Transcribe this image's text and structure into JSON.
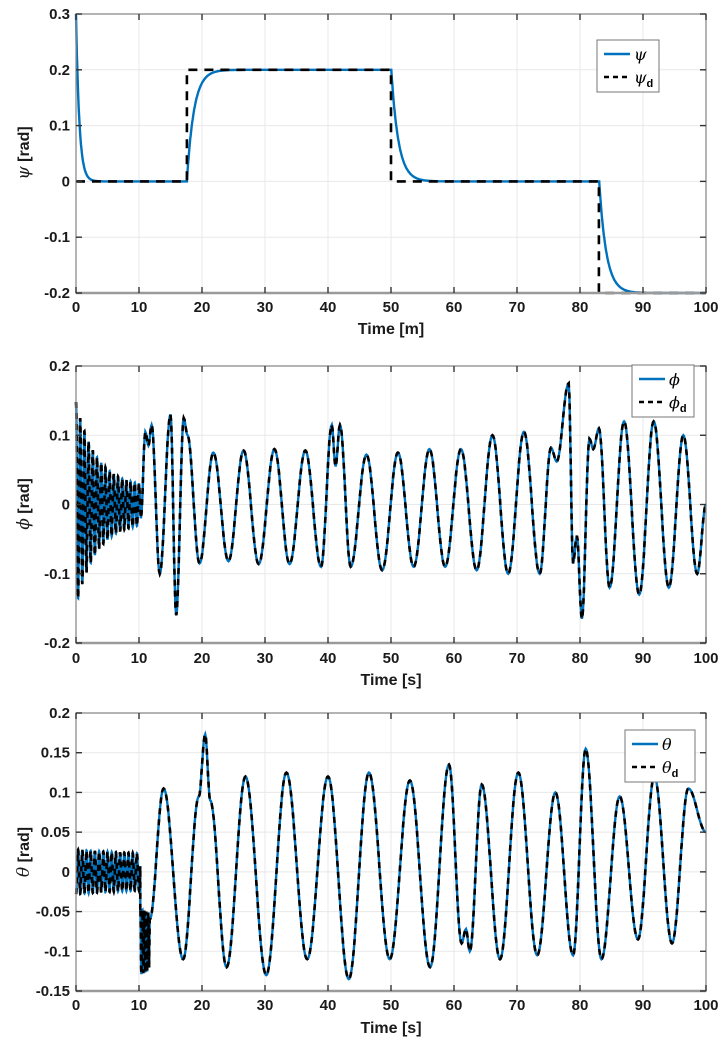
{
  "colors": {
    "line_actual": "#0072BD",
    "line_desired": "#000000",
    "axis_box": "#8c8c8c",
    "axis_bottom": "#9a9a9a",
    "grid": "#e8e8e8",
    "tick_label": "#1a1a1a",
    "legend_border": "#777777",
    "background": "#ffffff"
  },
  "chart_data": [
    {
      "type": "line",
      "xlabel": "Time [m]",
      "ylabel_greek": "ψ",
      "ylabel_unit": " [rad]",
      "xlim": [
        0,
        100
      ],
      "ylim": [
        -0.2,
        0.3
      ],
      "xticks": [
        0,
        10,
        20,
        30,
        40,
        50,
        60,
        70,
        80,
        90,
        100
      ],
      "yticks": [
        -0.2,
        -0.1,
        0,
        0.1,
        0.2,
        0.3
      ],
      "grid": true,
      "legend_position": "top-right",
      "legend": [
        {
          "label": "ψ",
          "sub": "",
          "line": "solid",
          "color": "#0072BD"
        },
        {
          "label": "ψ",
          "sub": "d",
          "line": "dashed",
          "color": "#000000"
        }
      ],
      "series": [
        {
          "name": "psi",
          "color": "#0072BD",
          "style": "solid",
          "gen": {
            "kind": "lag",
            "init": 0.3,
            "dt": 0.05,
            "taus": [
              {
                "until": 10,
                "tau": 0.55
              },
              {
                "until": 101,
                "tau": 1.15
              }
            ],
            "steps": [
              [
                0,
                0
              ],
              [
                17.6,
                0.2
              ],
              [
                50,
                0
              ],
              [
                83,
                -0.2
              ],
              [
                100,
                -0.2
              ]
            ]
          }
        },
        {
          "name": "psi_d",
          "color": "#000000",
          "style": "dashed",
          "gen": {
            "kind": "steps",
            "steps": [
              [
                0,
                0
              ],
              [
                17.6,
                0.2
              ],
              [
                50,
                0
              ],
              [
                83,
                -0.2
              ],
              [
                100,
                -0.2
              ]
            ]
          }
        }
      ]
    },
    {
      "type": "line",
      "xlabel": "Time [s]",
      "ylabel_greek": "ϕ",
      "ylabel_unit": " [rad]",
      "xlim": [
        0,
        100
      ],
      "ylim": [
        -0.2,
        0.2
      ],
      "xticks": [
        0,
        10,
        20,
        30,
        40,
        50,
        60,
        70,
        80,
        90,
        100
      ],
      "yticks": [
        -0.2,
        -0.1,
        0,
        0.1,
        0.2
      ],
      "grid": true,
      "legend_position": "top-right",
      "legend": [
        {
          "label": "ϕ",
          "sub": "",
          "line": "solid",
          "color": "#0072BD"
        },
        {
          "label": "ϕ",
          "sub": "d",
          "line": "dashed",
          "color": "#000000"
        }
      ],
      "series": [
        {
          "name": "phi",
          "color": "#0072BD",
          "style": "solid",
          "gen": {
            "kind": "segments",
            "segments": [
              {
                "kind": "osc",
                "t0": 0,
                "t1": 10.2,
                "freq": 1.5,
                "phase": 1.5708,
                "amp0": 0.148,
                "amp1": 0.025,
                "tau": 3.2,
                "offset": 0
              },
              {
                "kind": "extrema",
                "points": [
                  [
                    10.3,
                    -0.02
                  ],
                  [
                    11.0,
                    0.105
                  ],
                  [
                    11.5,
                    0.085
                  ],
                  [
                    12.0,
                    0.115
                  ],
                  [
                    13.3,
                    -0.1
                  ],
                  [
                    15.0,
                    0.13
                  ],
                  [
                    15.9,
                    -0.16
                  ],
                  [
                    17.1,
                    0.125
                  ],
                  [
                    17.7,
                    0.1
                  ],
                  [
                    19.6,
                    -0.085
                  ],
                  [
                    21.8,
                    0.075
                  ],
                  [
                    24.2,
                    -0.082
                  ],
                  [
                    26.6,
                    0.078
                  ],
                  [
                    29.0,
                    -0.086
                  ],
                  [
                    31.5,
                    0.08
                  ],
                  [
                    33.9,
                    -0.086
                  ],
                  [
                    36.4,
                    0.078
                  ],
                  [
                    38.9,
                    -0.09
                  ],
                  [
                    40.6,
                    0.115
                  ],
                  [
                    41.2,
                    0.055
                  ],
                  [
                    41.9,
                    0.115
                  ],
                  [
                    43.6,
                    -0.09
                  ],
                  [
                    46.1,
                    0.072
                  ],
                  [
                    48.6,
                    -0.095
                  ],
                  [
                    51.1,
                    0.075
                  ],
                  [
                    53.6,
                    -0.09
                  ],
                  [
                    56.1,
                    0.08
                  ],
                  [
                    58.6,
                    -0.09
                  ],
                  [
                    61.1,
                    0.08
                  ],
                  [
                    63.6,
                    -0.095
                  ],
                  [
                    66.1,
                    0.1
                  ],
                  [
                    68.6,
                    -0.1
                  ],
                  [
                    71.1,
                    0.105
                  ],
                  [
                    73.6,
                    -0.1
                  ],
                  [
                    75.4,
                    0.082
                  ],
                  [
                    76.3,
                    0.062
                  ],
                  [
                    78.2,
                    0.175
                  ],
                  [
                    78.9,
                    -0.085
                  ],
                  [
                    79.5,
                    -0.045
                  ],
                  [
                    80.3,
                    -0.165
                  ],
                  [
                    81.5,
                    0.095
                  ],
                  [
                    82.1,
                    0.08
                  ],
                  [
                    83.0,
                    0.11
                  ],
                  [
                    84.7,
                    -0.12
                  ],
                  [
                    87.0,
                    0.12
                  ],
                  [
                    89.4,
                    -0.13
                  ],
                  [
                    91.7,
                    0.12
                  ],
                  [
                    94.1,
                    -0.12
                  ],
                  [
                    96.4,
                    0.1
                  ],
                  [
                    98.6,
                    -0.1
                  ],
                  [
                    100.0,
                    0.0
                  ]
                ]
              }
            ]
          }
        },
        {
          "name": "phi_d",
          "color": "#000000",
          "style": "dashed",
          "gen": {
            "kind": "ref",
            "ref": 0
          }
        }
      ]
    },
    {
      "type": "line",
      "xlabel": "Time [s]",
      "ylabel_greek": "θ",
      "ylabel_unit": " [rad]",
      "xlim": [
        0,
        100
      ],
      "ylim": [
        -0.15,
        0.2
      ],
      "xticks": [
        0,
        10,
        20,
        30,
        40,
        50,
        60,
        70,
        80,
        90,
        100
      ],
      "yticks": [
        -0.15,
        -0.1,
        -0.05,
        0,
        0.05,
        0.1,
        0.15,
        0.2
      ],
      "grid": true,
      "legend_position": "top-right",
      "legend": [
        {
          "label": "θ",
          "sub": "",
          "line": "solid",
          "color": "#0072BD"
        },
        {
          "label": "θ",
          "sub": "d",
          "line": "dashed",
          "color": "#000000"
        }
      ],
      "series": [
        {
          "name": "theta",
          "color": "#0072BD",
          "style": "solid",
          "gen": {
            "kind": "segments",
            "segments": [
              {
                "kind": "osc",
                "t0": 0,
                "t1": 10.2,
                "freq": 1.5,
                "phase": -1.5708,
                "amp0": 0.028,
                "amp1": 0.02,
                "tau": 12,
                "offset": 0
              },
              {
                "kind": "osc",
                "t0": 10.2,
                "t1": 11.6,
                "freq": 3.2,
                "phase": 1.2,
                "amp0": 0.042,
                "amp1": 0.032,
                "tau": 2,
                "offset": -0.088
              },
              {
                "kind": "extrema",
                "points": [
                  [
                    11.7,
                    -0.06
                  ],
                  [
                    13.9,
                    0.105
                  ],
                  [
                    17.0,
                    -0.11
                  ],
                  [
                    19.5,
                    0.095
                  ],
                  [
                    20.5,
                    0.173
                  ],
                  [
                    21.3,
                    0.09
                  ],
                  [
                    23.9,
                    -0.12
                  ],
                  [
                    26.9,
                    0.12
                  ],
                  [
                    30.2,
                    -0.13
                  ],
                  [
                    33.4,
                    0.125
                  ],
                  [
                    36.7,
                    -0.11
                  ],
                  [
                    40.0,
                    0.12
                  ],
                  [
                    43.3,
                    -0.135
                  ],
                  [
                    46.5,
                    0.125
                  ],
                  [
                    49.8,
                    -0.11
                  ],
                  [
                    53.0,
                    0.115
                  ],
                  [
                    56.2,
                    -0.12
                  ],
                  [
                    59.2,
                    0.135
                  ],
                  [
                    61.2,
                    -0.09
                  ],
                  [
                    61.9,
                    -0.072
                  ],
                  [
                    62.5,
                    -0.1
                  ],
                  [
                    64.4,
                    0.11
                  ],
                  [
                    67.3,
                    -0.11
                  ],
                  [
                    70.2,
                    0.125
                  ],
                  [
                    73.2,
                    -0.105
                  ],
                  [
                    76.1,
                    0.1
                  ],
                  [
                    78.9,
                    -0.105
                  ],
                  [
                    80.9,
                    0.155
                  ],
                  [
                    83.4,
                    -0.11
                  ],
                  [
                    86.3,
                    0.095
                  ],
                  [
                    89.2,
                    -0.085
                  ],
                  [
                    91.8,
                    0.12
                  ],
                  [
                    94.6,
                    -0.09
                  ],
                  [
                    97.2,
                    0.105
                  ],
                  [
                    100.0,
                    0.05
                  ]
                ]
              }
            ]
          }
        },
        {
          "name": "theta_d",
          "color": "#000000",
          "style": "dashed",
          "gen": {
            "kind": "ref",
            "ref": 0
          }
        }
      ]
    }
  ]
}
